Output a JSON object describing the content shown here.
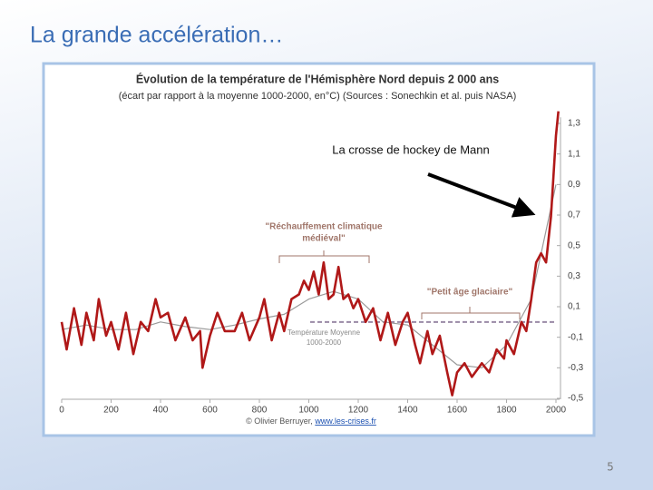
{
  "slide": {
    "title": "La grande accélération…",
    "page_number": "5"
  },
  "chart_data": {
    "type": "line",
    "title": "Évolution de la température de l'Hémisphère Nord depuis 2 000 ans",
    "subtitle": "(écart par rapport à la moyenne 1000-2000, en°C) (Sources : Sonechkin et al. puis NASA)",
    "credit": "© Olivier Berruyer, ",
    "credit_link": "www.les-crises.fr",
    "annotations": [
      {
        "lines": [
          "\"Réchauffement climatique",
          "médiéval\""
        ]
      },
      {
        "lines": [
          "\"Petit âge glaciaire\""
        ]
      },
      {
        "lines": [
          "Température Moyenne",
          "1000-2000"
        ]
      },
      {
        "lines": [
          "La crosse de hockey de Mann"
        ]
      }
    ],
    "series": [
      {
        "color": "#b01818",
        "x": [
          0,
          20,
          50,
          80,
          100,
          130,
          150,
          180,
          200,
          230,
          260,
          290,
          320,
          350,
          380,
          400,
          430,
          460,
          500,
          530,
          560,
          570,
          600,
          630,
          660,
          700,
          730,
          760,
          800,
          820,
          850,
          880,
          900,
          930,
          960,
          980,
          1000,
          1020,
          1040,
          1060,
          1080,
          1100,
          1120,
          1140,
          1160,
          1180,
          1200,
          1230,
          1260,
          1290,
          1320,
          1350,
          1380,
          1400,
          1430,
          1450,
          1480,
          1500,
          1530,
          1560,
          1580,
          1600,
          1630,
          1660,
          1700,
          1730,
          1760,
          1790,
          1800,
          1830,
          1860,
          1880,
          1900,
          1920,
          1940,
          1960,
          1980,
          2000,
          2010
        ],
        "values": [
          0,
          -0.18,
          0.09,
          -0.15,
          0.06,
          -0.12,
          0.15,
          -0.09,
          0,
          -0.18,
          0.06,
          -0.21,
          0,
          -0.06,
          0.15,
          0.03,
          0.06,
          -0.12,
          0.03,
          -0.12,
          -0.06,
          -0.3,
          -0.09,
          0.06,
          -0.06,
          -0.06,
          0.06,
          -0.12,
          0.03,
          0.15,
          -0.12,
          0.06,
          -0.06,
          0.15,
          0.18,
          0.27,
          0.21,
          0.33,
          0.18,
          0.39,
          0.15,
          0.18,
          0.36,
          0.15,
          0.18,
          0.09,
          0.15,
          0,
          0.09,
          -0.12,
          0.06,
          -0.15,
          0,
          0.06,
          -0.15,
          -0.27,
          -0.06,
          -0.21,
          -0.09,
          -0.33,
          -0.48,
          -0.33,
          -0.27,
          -0.36,
          -0.27,
          -0.33,
          -0.18,
          -0.24,
          -0.12,
          -0.21,
          0,
          -0.06,
          0.15,
          0.39,
          0.45,
          0.39,
          0.69,
          1.22,
          1.38
        ]
      },
      {
        "color": "#9a9a9a",
        "x": [
          0,
          100,
          200,
          300,
          400,
          500,
          600,
          700,
          800,
          900,
          1000,
          1100,
          1200,
          1300,
          1400,
          1500,
          1600,
          1700,
          1800,
          1900,
          2000
        ],
        "values": [
          -0.05,
          -0.02,
          -0.05,
          -0.05,
          0,
          -0.03,
          -0.05,
          -0.02,
          0.02,
          0.05,
          0.15,
          0.2,
          0.15,
          0,
          -0.02,
          -0.15,
          -0.28,
          -0.3,
          -0.15,
          0.15,
          0.9
        ]
      }
    ],
    "xlim": [
      0,
      2000
    ],
    "xticks": [
      0,
      200,
      400,
      600,
      800,
      1000,
      1200,
      1400,
      1600,
      1800,
      2000
    ],
    "ylim": [
      -0.55,
      1.4
    ],
    "yticks": [
      {
        "value": -0.5,
        "label": "-0,5"
      },
      {
        "value": -0.3,
        "label": "-0,3"
      },
      {
        "value": -0.1,
        "label": "-0,1"
      },
      {
        "value": 0.1,
        "label": "0,1"
      },
      {
        "value": 0.3,
        "label": "0,3"
      },
      {
        "value": 0.5,
        "label": "0,5"
      },
      {
        "value": 0.7,
        "label": "0,7"
      },
      {
        "value": 0.9,
        "label": "0,9"
      },
      {
        "value": 1.1,
        "label": "1,1"
      },
      {
        "value": 1.3,
        "label": "1,3"
      }
    ],
    "grid": false
  }
}
